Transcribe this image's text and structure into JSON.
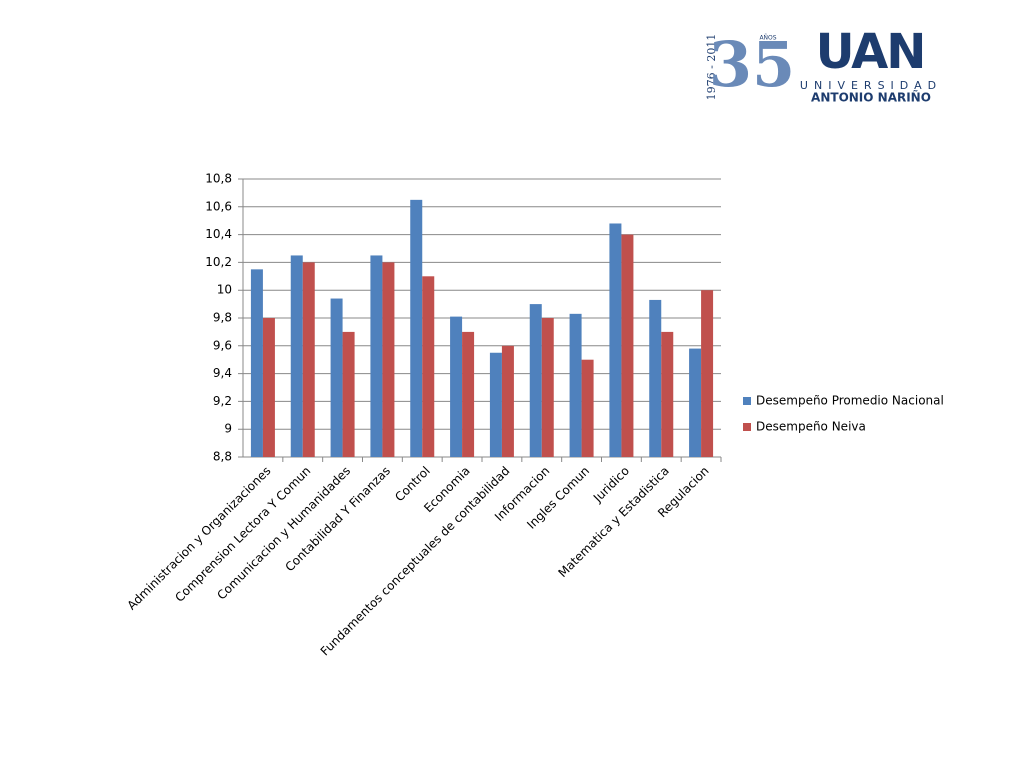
{
  "logo": {
    "years": "1976 - 2011",
    "anniversary": "35",
    "anos": "AÑOS",
    "acronym": "UAN",
    "university": "UNIVERSIDAD",
    "name": "ANTONIO NARIÑO"
  },
  "chart_data": {
    "type": "bar",
    "categories": [
      "Administracion y Organizaciones",
      "Comprension Lectora Y Comun",
      "Comunicacion y Humanidades",
      "Contabilidad Y Finanzas",
      "Control",
      "Economia",
      "Fundamentos conceptuales de contabilidad",
      "Informacion",
      "Ingles Comun",
      "Juridico",
      "Matematica y Estadistica",
      "Regulacion"
    ],
    "series": [
      {
        "name": "Desempeño Promedio Nacional",
        "color": "#4f81bd",
        "values": [
          10.15,
          10.25,
          9.94,
          10.25,
          10.65,
          9.81,
          9.55,
          9.9,
          9.83,
          10.48,
          9.93,
          9.58
        ]
      },
      {
        "name": "Desempeño Neiva",
        "color": "#c0504d",
        "values": [
          9.8,
          10.2,
          9.7,
          10.2,
          10.1,
          9.7,
          9.6,
          9.8,
          9.5,
          10.4,
          9.7,
          10.0
        ]
      }
    ],
    "ylim": [
      8.8,
      10.8
    ],
    "yticks": [
      {
        "value": 8.8,
        "label": "8,8"
      },
      9,
      {
        "value": 9.2,
        "label": "9,2"
      },
      {
        "value": 9.4,
        "label": "9,4"
      },
      {
        "value": 9.6,
        "label": "9,6"
      },
      {
        "value": 9.8,
        "label": "9,8"
      },
      10,
      {
        "value": 10.2,
        "label": "10,2"
      },
      {
        "value": 10.4,
        "label": "10,4"
      },
      {
        "value": 10.6,
        "label": "10,6"
      },
      {
        "value": 10.8,
        "label": "10,8"
      }
    ],
    "grid": true,
    "legend": "right"
  }
}
